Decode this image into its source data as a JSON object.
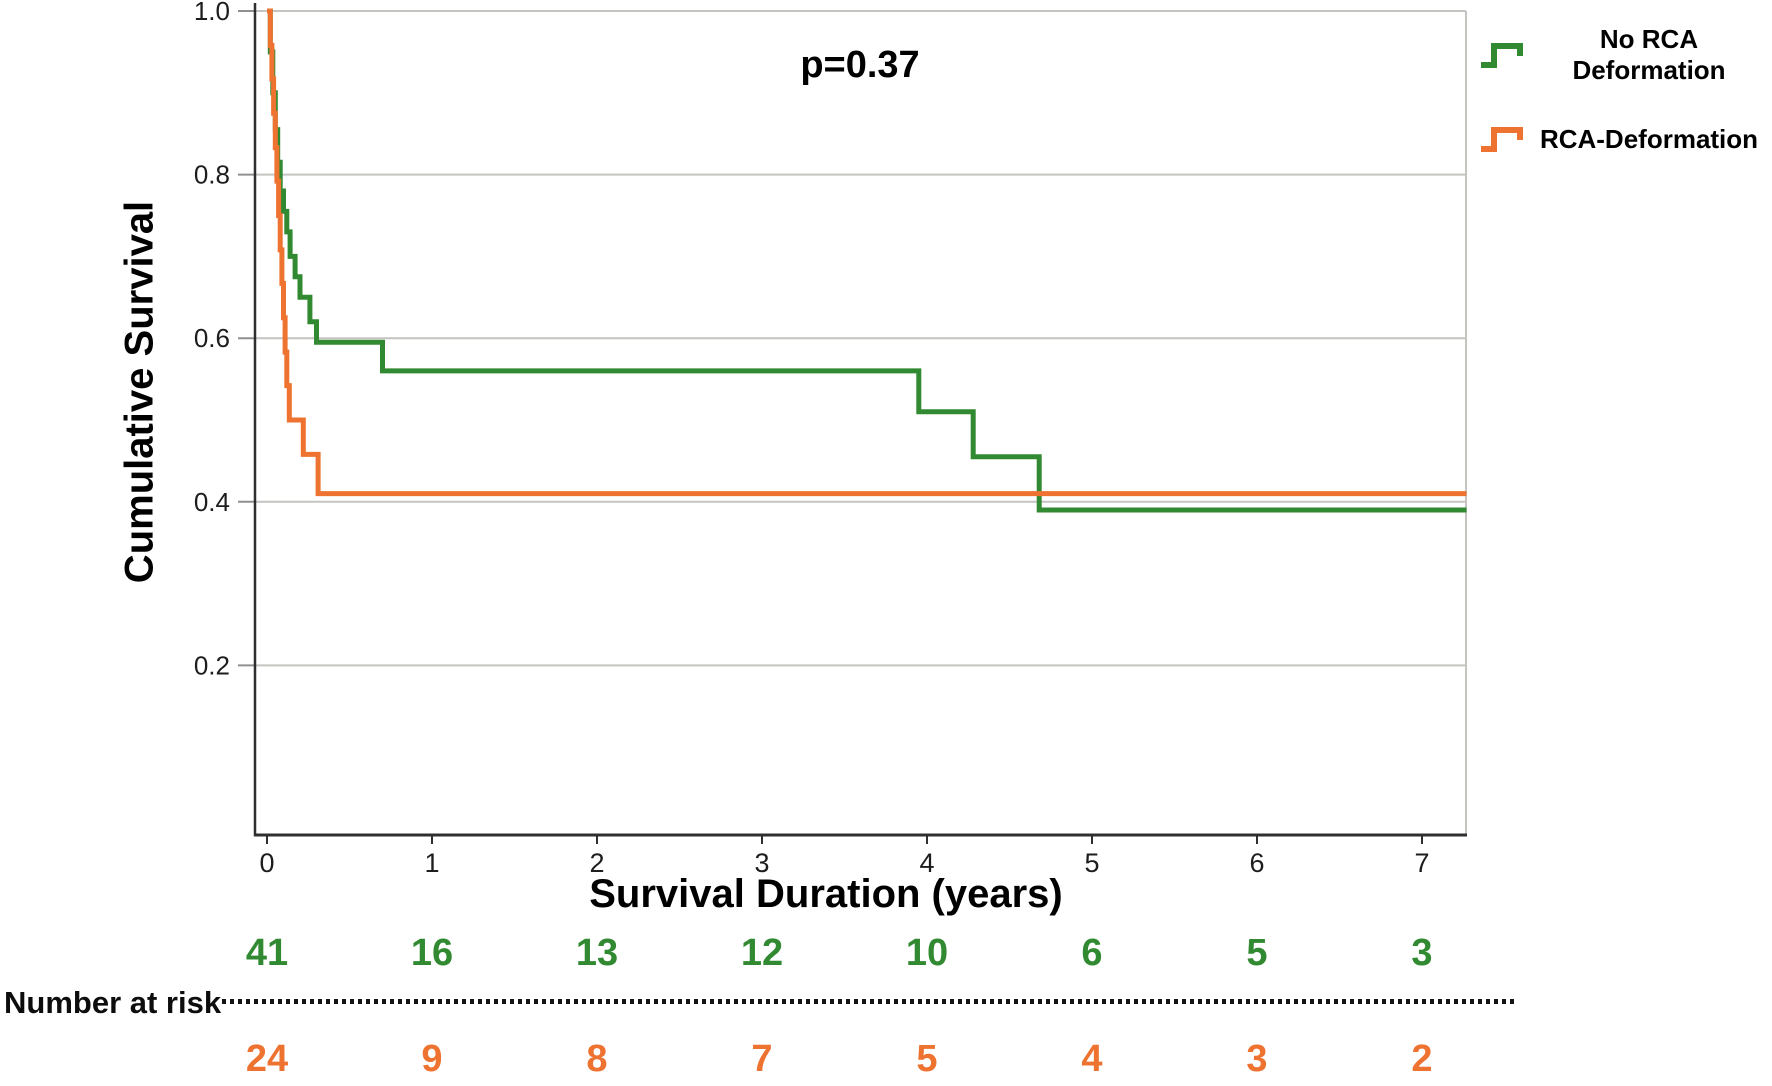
{
  "chart_data": {
    "type": "line",
    "subtype": "kaplan-meier-step",
    "p_value_annotation": "p=0.37",
    "xlabel": "Survival Duration (years)",
    "ylabel": "Cumulative Survival",
    "xlim": [
      0,
      7.27
    ],
    "ylim": [
      0,
      1.0
    ],
    "xticks": [
      0,
      1,
      2,
      3,
      4,
      5,
      6,
      7
    ],
    "xtick_labels": [
      "0",
      "1",
      "2",
      "3",
      "4",
      "5",
      "6",
      "7"
    ],
    "yticks": [
      0.2,
      0.4,
      0.6,
      0.8,
      1.0
    ],
    "ytick_labels": [
      "0.2",
      "0.4",
      "0.6",
      "0.8",
      "1.0"
    ],
    "grid": true,
    "legend_position": "top-right-outside",
    "colors": {
      "no_rca_deformation": "#318a31",
      "rca_deformation": "#ee7230",
      "gridline": "#c5c4c0",
      "axis": "#2f2f2f",
      "tick_label": "#1d1d1d"
    },
    "series": [
      {
        "name": "No RCA Deformation",
        "color": "#318a31",
        "points": [
          [
            0,
            1.0
          ],
          [
            0.02,
            0.95
          ],
          [
            0.035,
            0.9
          ],
          [
            0.05,
            0.855
          ],
          [
            0.065,
            0.815
          ],
          [
            0.08,
            0.78
          ],
          [
            0.1,
            0.755
          ],
          [
            0.12,
            0.73
          ],
          [
            0.14,
            0.7
          ],
          [
            0.17,
            0.675
          ],
          [
            0.2,
            0.65
          ],
          [
            0.26,
            0.62
          ],
          [
            0.3,
            0.595
          ],
          [
            0.7,
            0.56
          ],
          [
            3.95,
            0.51
          ],
          [
            4.28,
            0.455
          ],
          [
            4.68,
            0.39
          ]
        ]
      },
      {
        "name": "RCA-Deformation",
        "color": "#ee7230",
        "points": [
          [
            0,
            1.0
          ],
          [
            0.02,
            0.958
          ],
          [
            0.03,
            0.917
          ],
          [
            0.04,
            0.875
          ],
          [
            0.05,
            0.833
          ],
          [
            0.06,
            0.792
          ],
          [
            0.07,
            0.75
          ],
          [
            0.08,
            0.708
          ],
          [
            0.09,
            0.667
          ],
          [
            0.1,
            0.625
          ],
          [
            0.11,
            0.583
          ],
          [
            0.12,
            0.542
          ],
          [
            0.135,
            0.5
          ],
          [
            0.22,
            0.458
          ],
          [
            0.31,
            0.41
          ]
        ]
      }
    ],
    "risk_table": {
      "label": "Number at risk",
      "times": [
        0,
        1,
        2,
        3,
        4,
        5,
        6,
        7
      ],
      "rows": [
        {
          "name": "No RCA Deformation",
          "color": "#318a31",
          "values": [
            "41",
            "16",
            "13",
            "12",
            "10",
            "6",
            "5",
            "3"
          ]
        },
        {
          "name": "RCA-Deformation",
          "color": "#ee7230",
          "values": [
            "24",
            "9",
            "8",
            "7",
            "5",
            "4",
            "3",
            "2"
          ]
        }
      ]
    }
  }
}
